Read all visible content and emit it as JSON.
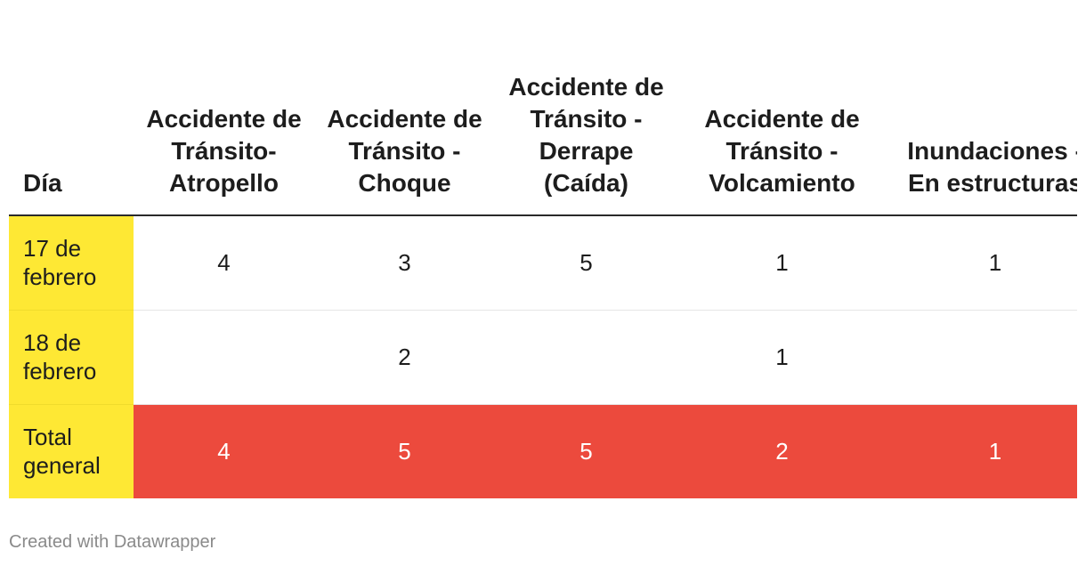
{
  "chart_data": {
    "type": "table",
    "columns": [
      "Día",
      "Accidente de Tránsito-Atropello",
      "Accidente de Tránsito - Choque",
      "Accidente de Tránsito - Derrape (Caída)",
      "Accidente de Tránsito - Volcamiento",
      "Inundaciones - En estructuras"
    ],
    "rows": [
      {
        "label": "17 de febrero",
        "values": [
          "4",
          "3",
          "5",
          "1",
          "1"
        ]
      },
      {
        "label": "18 de febrero",
        "values": [
          "",
          "2",
          "",
          "1",
          ""
        ]
      },
      {
        "label": "Total general",
        "values": [
          "4",
          "5",
          "5",
          "2",
          "1"
        ]
      }
    ],
    "colors": {
      "label_column": "#fee834",
      "total_row": "#ec4a3d"
    }
  },
  "footer": {
    "credit": "Created with Datawrapper"
  }
}
